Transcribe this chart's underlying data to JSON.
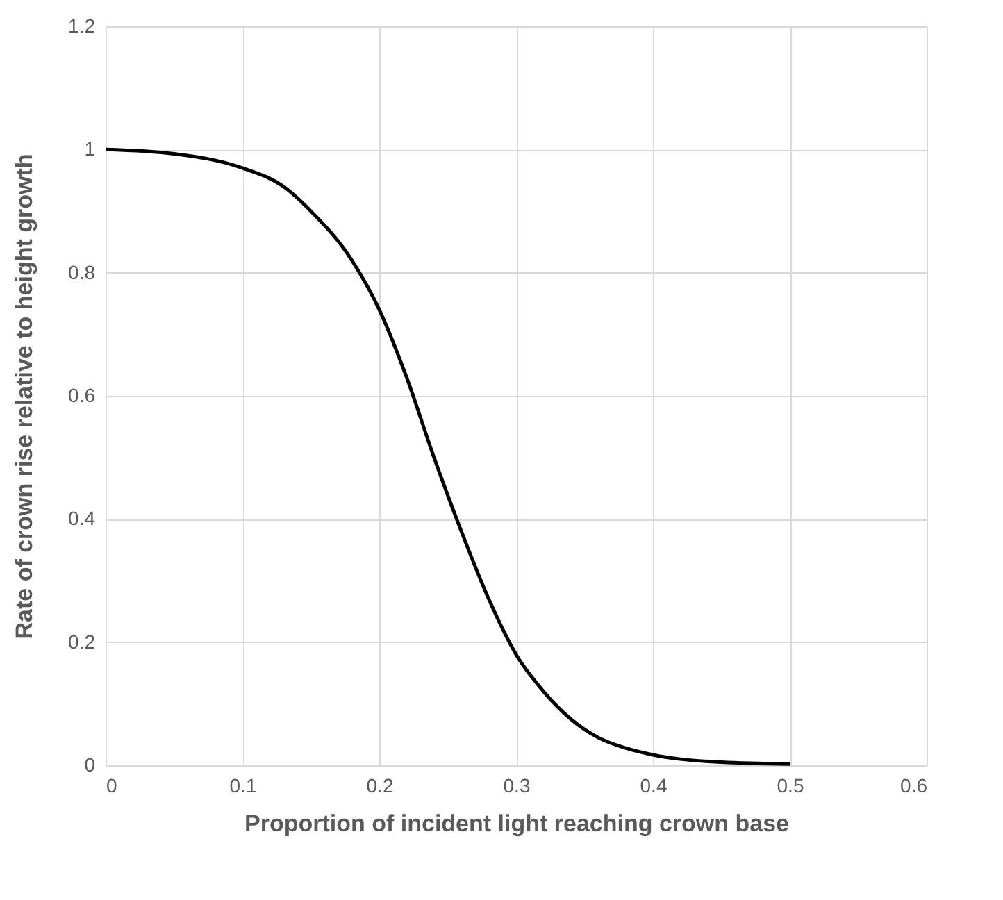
{
  "chart_data": {
    "type": "line",
    "xlabel": "Proportion of incident light reaching crown base",
    "ylabel": "Rate of crown rise relative to height growth",
    "x": [
      0,
      0.05,
      0.1,
      0.13,
      0.15,
      0.18,
      0.2,
      0.22,
      0.24,
      0.26,
      0.28,
      0.3,
      0.32,
      0.34,
      0.36,
      0.38,
      0.4,
      0.42,
      0.45,
      0.5
    ],
    "series": [
      {
        "color": "#000000",
        "values": [
          1.0,
          0.993,
          0.97,
          0.94,
          0.9,
          0.82,
          0.74,
          0.63,
          0.5,
          0.38,
          0.27,
          0.18,
          0.12,
          0.075,
          0.045,
          0.028,
          0.017,
          0.01,
          0.005,
          0.002
        ]
      }
    ],
    "xlim": [
      0,
      0.6
    ],
    "xticks": [
      0,
      0.1,
      0.2,
      0.3,
      0.4,
      0.5,
      0.6
    ],
    "ylim": [
      0,
      1.2
    ],
    "yticks": [
      0,
      0.2,
      0.4,
      0.6,
      0.8,
      1,
      1.2
    ],
    "grid": true,
    "legend": false,
    "marker": "none",
    "line_style": "solid"
  }
}
